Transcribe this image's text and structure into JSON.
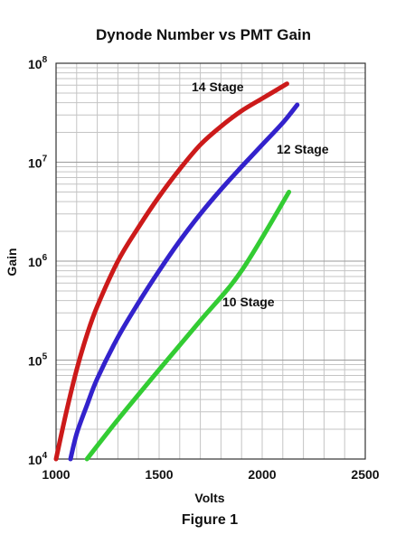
{
  "caption": "Figure 1",
  "chart_data": {
    "type": "line",
    "title": "Dynode Number vs PMT Gain",
    "xlabel": "Volts",
    "ylabel": "Gain",
    "xlim": [
      1000,
      2500
    ],
    "ylim": [
      10000,
      100000000
    ],
    "yscale": "log",
    "grid": true,
    "x_ticks": [
      "1000",
      "1500",
      "2000",
      "2500"
    ],
    "y_ticks": [
      {
        "base": "10",
        "exp": "4"
      },
      {
        "base": "10",
        "exp": "5"
      },
      {
        "base": "10",
        "exp": "6"
      },
      {
        "base": "10",
        "exp": "7"
      },
      {
        "base": "10",
        "exp": "8"
      }
    ],
    "series": [
      {
        "name": "14 Stage",
        "color": "#cc1a1a",
        "x": [
          1000,
          1050,
          1100,
          1150,
          1200,
          1300,
          1400,
          1500,
          1600,
          1700,
          1800,
          1900,
          2000,
          2120
        ],
        "y": [
          10000,
          30000,
          80000,
          180000,
          350000,
          1000000,
          2200000,
          4500000,
          8500000,
          15000000,
          23000000,
          33000000,
          44000000,
          62000000
        ]
      },
      {
        "name": "12 Stage",
        "color": "#3322cc",
        "x": [
          1070,
          1100,
          1150,
          1200,
          1300,
          1400,
          1500,
          1600,
          1700,
          1800,
          1900,
          2000,
          2100,
          2170
        ],
        "y": [
          10000,
          18000,
          35000,
          65000,
          170000,
          380000,
          800000,
          1600000,
          3000000,
          5300000,
          9000000,
          15000000,
          25000000,
          38000000
        ]
      },
      {
        "name": "10 Stage",
        "color": "#33cc33",
        "x": [
          1150,
          1300,
          1500,
          1700,
          1900,
          2130
        ],
        "y": [
          10000,
          25000,
          80000,
          250000,
          800000,
          5000000
        ]
      }
    ]
  }
}
